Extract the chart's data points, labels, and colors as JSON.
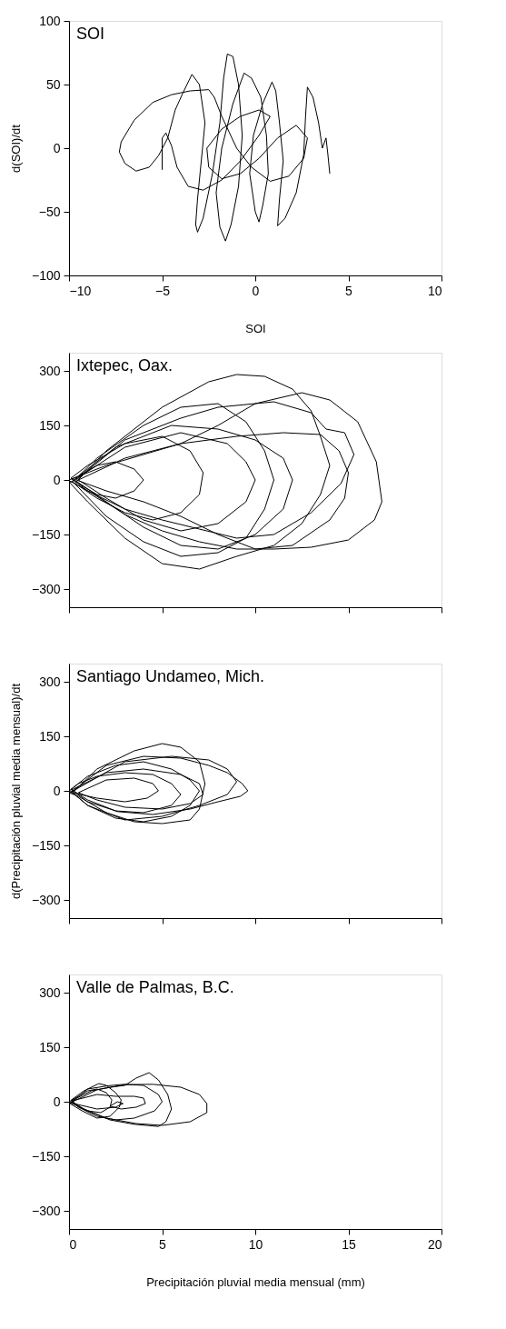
{
  "chart_data": [
    {
      "type": "line",
      "title": "SOI",
      "xlabel": "SOI",
      "ylabel": "d(SOI)/dt",
      "xlim": [
        -10,
        10
      ],
      "ylim": [
        -100,
        100
      ],
      "xticks": [
        -10,
        -5,
        0,
        5,
        10
      ],
      "yticks": [
        -100,
        -50,
        0,
        50,
        100
      ],
      "grid": false,
      "series": [
        {
          "color": "#000000",
          "x": [
            -5,
            -5,
            -4.8,
            -4.5,
            -4.2,
            -3.6,
            -2.8,
            -1.8,
            -0.8,
            0.2,
            0.8,
            0.2,
            -0.8,
            -1.8,
            -2.6,
            -2.5,
            -1.8,
            -0.8,
            0.2,
            1.2,
            2.2,
            2.8,
            2.6,
            1.8,
            0.8,
            -0.2,
            -1,
            -1.8,
            -2.2,
            -2.5,
            -3.5,
            -4.5,
            -5.5,
            -6.5,
            -7.2,
            -7.3,
            -7,
            -6.4,
            -5.7,
            -5.2,
            -4.7,
            -4.3,
            -3.9,
            -3.4,
            -3.0,
            -2.7,
            -2.9,
            -3.1,
            -3.2,
            -3.1,
            -2.8,
            -2.3,
            -1.9,
            -1.7,
            -1.5,
            -1.2,
            -0.9,
            -0.7,
            -0.9,
            -1.3,
            -1.6,
            -1.9,
            -2.1,
            -1.8,
            -1.2,
            -0.6,
            -0.2,
            0.3,
            0.6,
            0.7,
            0.4,
            0.2,
            0,
            -0.3,
            -0.1,
            0.4,
            0.9,
            1.1,
            1.3,
            1.5,
            1.3,
            1.2,
            1.6,
            2.2,
            2.6,
            2.7,
            2.8,
            3.1,
            3.4,
            3.6,
            3.8,
            3.9,
            4
          ],
          "values": [
            -17,
            8,
            12,
            2,
            -15,
            -30,
            -33,
            -25,
            -10,
            10,
            25,
            30,
            25,
            15,
            0,
            -15,
            -24,
            -20,
            -8,
            8,
            18,
            8,
            -8,
            -22,
            -26,
            -15,
            0,
            25,
            40,
            46,
            45,
            42,
            36,
            22,
            5,
            -3,
            -12,
            -18,
            -15,
            -6,
            8,
            30,
            43,
            58,
            50,
            20,
            -10,
            -40,
            -60,
            -66,
            -55,
            -20,
            20,
            55,
            74,
            72,
            50,
            10,
            -30,
            -60,
            -73,
            -62,
            -35,
            0,
            35,
            59,
            55,
            40,
            10,
            -20,
            -45,
            -58,
            -50,
            -20,
            10,
            35,
            52,
            45,
            20,
            -10,
            -40,
            -61,
            -55,
            -35,
            -5,
            25,
            48,
            40,
            20,
            0,
            8,
            -5,
            -20
          ]
        }
      ]
    },
    {
      "type": "line",
      "title": "Ixtepec, Oax.",
      "xlim": [
        0,
        20
      ],
      "ylim": [
        -350,
        350
      ],
      "xticks": [
        0,
        5,
        10,
        15,
        20
      ],
      "yticks": [
        -300,
        -150,
        0,
        150,
        300
      ],
      "tick_labels": "y",
      "grid": false,
      "series": [
        {
          "color": "#000000",
          "x": [
            0,
            0.5,
            1.5,
            2.5,
            3.5,
            4,
            3.5,
            2.5,
            1.5,
            0.5,
            0.1,
            1,
            3,
            5,
            6.5,
            7.2,
            7,
            6,
            4.5,
            3,
            1.5,
            0.2,
            1.5,
            4,
            6,
            8,
            9.5,
            10.5,
            11,
            10.5,
            9.5,
            8,
            6,
            4,
            2,
            0.3,
            2,
            5,
            7.5,
            9,
            10.5,
            12,
            13,
            13.5,
            14,
            13.5,
            12.5,
            11,
            9,
            7,
            5,
            3,
            1,
            0.05,
            2.5,
            5.5,
            8,
            10,
            11.5,
            12,
            11.5,
            10,
            8,
            6,
            4,
            2,
            0.3,
            3,
            6,
            8.5,
            9.5,
            10,
            9.5,
            8,
            6,
            4,
            2,
            0.5,
            3,
            6,
            9,
            11.5,
            13.5,
            14.5,
            15,
            14.8,
            14,
            12,
            10,
            8,
            6,
            4,
            2,
            0.4,
            3,
            6,
            8,
            11,
            13,
            13.8,
            14.8,
            15.3,
            14.6,
            13,
            11,
            9,
            7,
            5,
            3,
            1,
            0.15,
            2,
            4,
            6,
            8,
            10,
            12.5,
            14,
            15.5,
            16.5,
            16.8,
            16.4,
            15,
            13,
            11,
            9,
            7,
            5,
            3,
            1.2,
            0.05
          ],
          "values": [
            0,
            10,
            40,
            50,
            30,
            0,
            -30,
            -50,
            -40,
            -10,
            5,
            40,
            100,
            120,
            80,
            20,
            -40,
            -90,
            -110,
            -90,
            -50,
            -5,
            60,
            150,
            200,
            210,
            160,
            80,
            0,
            -80,
            -160,
            -200,
            -210,
            -170,
            -100,
            -10,
            80,
            200,
            270,
            290,
            285,
            250,
            190,
            120,
            40,
            -40,
            -120,
            -180,
            -210,
            -245,
            -230,
            -160,
            -60,
            -8,
            90,
            150,
            140,
            110,
            60,
            0,
            -80,
            -150,
            -190,
            -180,
            -130,
            -60,
            0,
            90,
            130,
            100,
            50,
            0,
            -60,
            -120,
            -140,
            -110,
            -50,
            0,
            60,
            100,
            120,
            130,
            125,
            80,
            20,
            -50,
            -110,
            -180,
            -190,
            -150,
            -100,
            -60,
            -30,
            0,
            110,
            170,
            200,
            215,
            185,
            140,
            130,
            70,
            -10,
            -90,
            -150,
            -160,
            -135,
            -110,
            -80,
            -30,
            3,
            40,
            70,
            100,
            150,
            210,
            240,
            220,
            160,
            50,
            -60,
            -110,
            -165,
            -185,
            -190,
            -190,
            -170,
            -140,
            -95,
            -35,
            -3
          ]
        }
      ]
    },
    {
      "type": "line",
      "title": "Santiago Undameo, Mich.",
      "ylabel": "d(Precipitación pluvial media mensual)/dt",
      "xlim": [
        0,
        20
      ],
      "ylim": [
        -350,
        350
      ],
      "xticks": [
        0,
        5,
        10,
        15,
        20
      ],
      "yticks": [
        -300,
        -150,
        0,
        150,
        300
      ],
      "tick_labels": "y",
      "grid": false,
      "series": [
        {
          "color": "#000000",
          "x": [
            0,
            0.5,
            1.5,
            3,
            4.5,
            5.5,
            6,
            5.5,
            4,
            2.5,
            1,
            0.1,
            1,
            2.5,
            4,
            5.5,
            6.5,
            7,
            6.5,
            5.5,
            4,
            2.5,
            1,
            0.2,
            1.5,
            3.5,
            5,
            6,
            7,
            7.3,
            7,
            6.5,
            5,
            3.5,
            2,
            0.5,
            0.05,
            2,
            4,
            6,
            7.5,
            8.5,
            9.3,
            9.6,
            9.2,
            8,
            6.5,
            4.5,
            2.6,
            1,
            0.15,
            2,
            4,
            6,
            7,
            7.2,
            6.5,
            5,
            3,
            1.5,
            0.5,
            2,
            3.5,
            4.5,
            4.8,
            4.2,
            3,
            1.5,
            0.08,
            3,
            5.5,
            7.5,
            8.5,
            9,
            8.5,
            7,
            5,
            3,
            1,
            0.02
          ],
          "values": [
            0,
            20,
            40,
            50,
            45,
            20,
            -10,
            -40,
            -60,
            -55,
            -30,
            4,
            40,
            70,
            80,
            60,
            30,
            0,
            -40,
            -70,
            -85,
            -75,
            -40,
            -5,
            60,
            110,
            130,
            120,
            80,
            20,
            -50,
            -80,
            -90,
            -85,
            -60,
            -15,
            -6,
            70,
            95,
            90,
            70,
            50,
            20,
            0,
            -15,
            -30,
            -50,
            -65,
            -57,
            -25,
            3,
            50,
            60,
            45,
            20,
            -10,
            -35,
            -50,
            -45,
            -25,
            -5,
            30,
            35,
            20,
            0,
            -20,
            -30,
            -20,
            -4,
            80,
            95,
            85,
            60,
            25,
            -10,
            -40,
            -70,
            -80,
            -40,
            2
          ]
        }
      ]
    },
    {
      "type": "line",
      "title": "Valle de Palmas, B.C.",
      "xlabel": "Precipitación pluvial media mensual (mm)",
      "xlim": [
        0,
        20
      ],
      "ylim": [
        -350,
        350
      ],
      "xticks": [
        0,
        5,
        10,
        15,
        20
      ],
      "yticks": [
        -300,
        -150,
        0,
        150,
        300
      ],
      "grid": false,
      "series": [
        {
          "color": "#000000",
          "x": [
            0,
            0.5,
            1,
            1.5,
            2,
            2.3,
            2.2,
            1.7,
            1,
            0.4,
            0.1,
            0.8,
            1.6,
            2,
            2.5,
            2.8,
            2.7,
            2.2,
            1.5,
            0.7,
            0.05,
            1,
            2.1,
            3,
            4,
            4.8,
            5,
            4.6,
            3.5,
            2.5,
            1.5,
            0.5,
            0.15,
            1.2,
            2.2,
            3,
            3.6,
            4.3,
            4.8,
            5.3,
            5.5,
            5.2,
            4.8,
            3.5,
            2.2,
            1.1,
            0.08,
            1.5,
            3,
            4.5,
            6,
            7,
            7.4,
            7.4,
            6.5,
            5,
            3.6,
            2,
            0.8,
            0.12,
            1.5,
            2.5,
            3.5,
            4,
            4.1,
            3.6,
            2.8,
            2.2,
            2.6,
            2.9,
            2.5,
            1.5,
            0.5,
            0.02
          ],
          "values": [
            0,
            15,
            30,
            35,
            25,
            5,
            -15,
            -30,
            -25,
            -10,
            4,
            30,
            50,
            45,
            25,
            5,
            -15,
            -40,
            -45,
            -25,
            -5,
            35,
            44,
            48,
            45,
            20,
            0,
            -25,
            -45,
            -50,
            -40,
            -15,
            3,
            30,
            40,
            45,
            65,
            80,
            60,
            20,
            -20,
            -55,
            -68,
            -62,
            -50,
            -27,
            -3,
            33,
            47,
            48,
            40,
            20,
            -5,
            -30,
            -55,
            -65,
            -60,
            -45,
            -20,
            2,
            20,
            15,
            15,
            10,
            -5,
            -15,
            -20,
            -12,
            0,
            -5,
            -15,
            -20,
            -8,
            -1
          ]
        }
      ]
    }
  ]
}
